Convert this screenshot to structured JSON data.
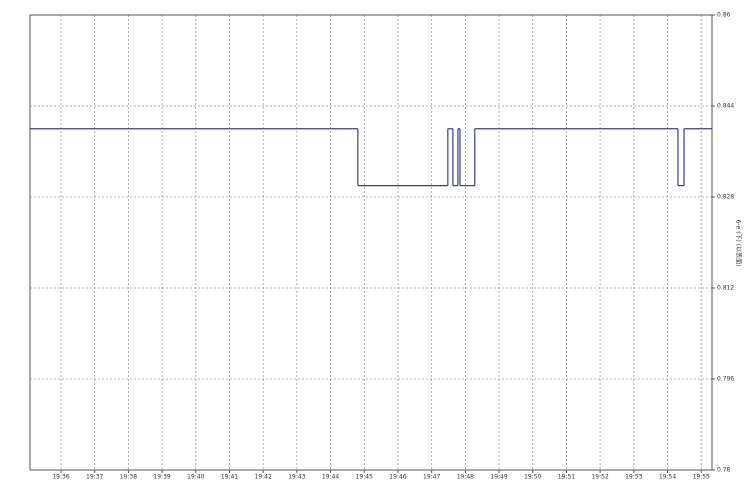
{
  "chart_data": {
    "type": "line",
    "drawstyle": "steps-post",
    "y_label": "6-e (下) (以表面)",
    "x": [
      1175.08,
      1184.81,
      1187.48,
      1187.63,
      1187.78,
      1187.84,
      1188.28,
      1194.31,
      1194.49,
      1195.32
    ],
    "series": [
      {
        "color": "#3b3b8f",
        "values": [
          0.84,
          0.83,
          0.84,
          0.83,
          0.84,
          0.83,
          0.84,
          0.83,
          0.84,
          0.84
        ]
      }
    ],
    "xlim": [
      1175.08,
      1195.32
    ],
    "xticks": [
      {
        "value": 1176,
        "label": "19:36"
      },
      {
        "value": 1177,
        "label": "19:37"
      },
      {
        "value": 1178,
        "label": "19:38"
      },
      {
        "value": 1179,
        "label": "19:39"
      },
      {
        "value": 1180,
        "label": "19:40"
      },
      {
        "value": 1181,
        "label": "19:41"
      },
      {
        "value": 1182,
        "label": "19:42"
      },
      {
        "value": 1183,
        "label": "19:43"
      },
      {
        "value": 1184,
        "label": "19:44"
      },
      {
        "value": 1185,
        "label": "19:45"
      },
      {
        "value": 1186,
        "label": "19:46"
      },
      {
        "value": 1187,
        "label": "19:47"
      },
      {
        "value": 1188,
        "label": "19:48"
      },
      {
        "value": 1189,
        "label": "19:49"
      },
      {
        "value": 1190,
        "label": "19:50"
      },
      {
        "value": 1191,
        "label": "19:51"
      },
      {
        "value": 1192,
        "label": "19:52"
      },
      {
        "value": 1193,
        "label": "19:53"
      },
      {
        "value": 1194,
        "label": "19:54"
      },
      {
        "value": 1195,
        "label": "19:55"
      }
    ],
    "ylim": [
      0.78,
      0.86
    ],
    "yticks": [
      0.78,
      0.796,
      0.812,
      0.828,
      0.844,
      0.86
    ],
    "grid": true
  }
}
